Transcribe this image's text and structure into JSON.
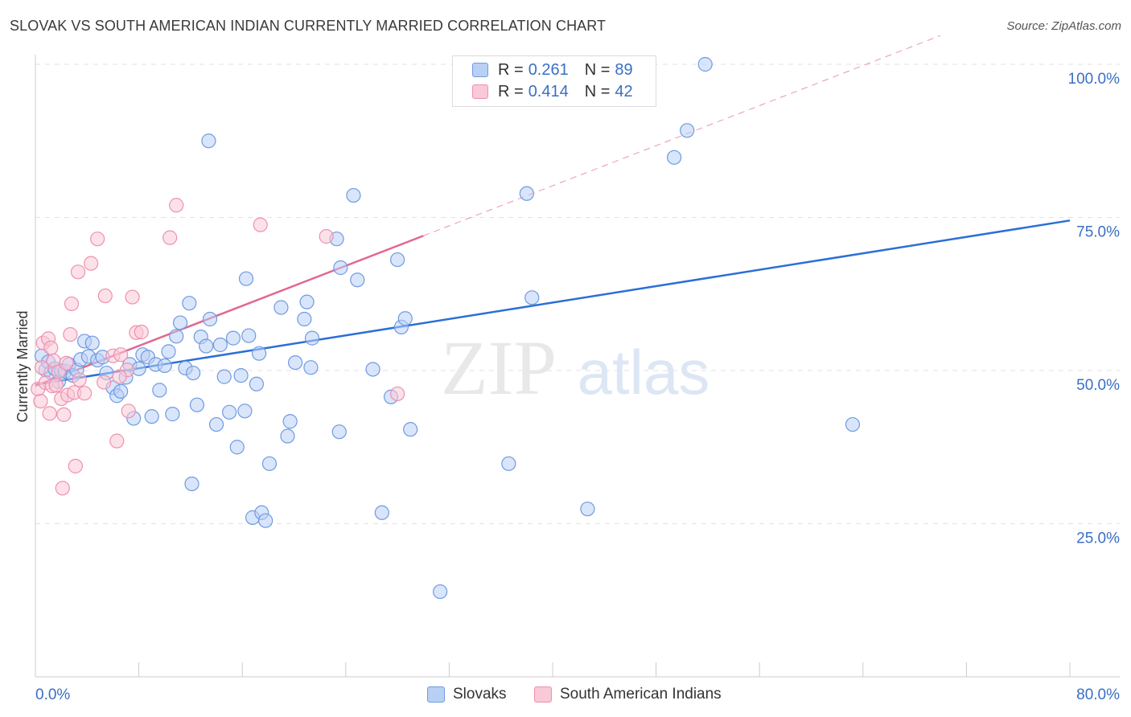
{
  "header": {
    "title": "SLOVAK VS SOUTH AMERICAN INDIAN CURRENTLY MARRIED CORRELATION CHART",
    "source": "Source: ZipAtlas.com"
  },
  "watermark": {
    "zip": "ZIP",
    "atlas": "atlas"
  },
  "legend": {
    "rows": [
      {
        "r_label": "R =",
        "r_value": "0.261",
        "n_label": "N =",
        "n_value": "89",
        "color": "#6f9be0",
        "fill": "#b9d0f5"
      },
      {
        "r_label": "R =",
        "r_value": "0.414",
        "n_label": "N =",
        "n_value": "42",
        "color": "#ee91ad",
        "fill": "#f9c9d7"
      }
    ]
  },
  "bottom_legend": {
    "items": [
      {
        "label": "Slovaks",
        "color": "#6f9be0",
        "fill": "#b9d0f5"
      },
      {
        "label": "South American Indians",
        "color": "#ee91ad",
        "fill": "#f9c9d7"
      }
    ]
  },
  "chart_data": {
    "type": "scatter",
    "ylabel": "Currently Married",
    "x_tick_labels": {
      "min": "0.0%",
      "max": "80.0%"
    },
    "y_tick_labels": [
      "100.0%",
      "75.0%",
      "50.0%",
      "25.0%"
    ],
    "y_ticks": [
      100,
      75,
      50,
      25
    ],
    "xlim": [
      0,
      80
    ],
    "ylim": [
      0,
      102
    ],
    "grid": true,
    "series": [
      {
        "name": "Slovaks",
        "color": "#6f9be0",
        "fill": "#b9d0f5",
        "trend": {
          "x": [
            0,
            80
          ],
          "y": [
            47.7,
            74.5
          ],
          "style": "solid",
          "color": "#2b6fd6"
        },
        "points": [
          [
            0.5,
            52.4
          ],
          [
            0.8,
            50.1
          ],
          [
            1.0,
            51.4
          ],
          [
            1.2,
            49.7
          ],
          [
            1.5,
            50.3
          ],
          [
            1.8,
            48.2
          ],
          [
            2.0,
            50.0
          ],
          [
            2.3,
            49.9
          ],
          [
            2.6,
            51.0
          ],
          [
            2.9,
            49.2
          ],
          [
            3.2,
            50.1
          ],
          [
            3.5,
            51.8
          ],
          [
            3.8,
            54.8
          ],
          [
            4.1,
            52.3
          ],
          [
            4.4,
            54.5
          ],
          [
            4.8,
            51.7
          ],
          [
            5.2,
            52.2
          ],
          [
            5.5,
            49.6
          ],
          [
            6.0,
            47.2
          ],
          [
            6.3,
            45.9
          ],
          [
            6.6,
            46.6
          ],
          [
            7.0,
            48.9
          ],
          [
            7.3,
            51.0
          ],
          [
            7.6,
            42.2
          ],
          [
            8.0,
            50.3
          ],
          [
            8.3,
            52.6
          ],
          [
            8.7,
            52.2
          ],
          [
            9.0,
            42.5
          ],
          [
            9.3,
            51.0
          ],
          [
            9.6,
            46.8
          ],
          [
            10.0,
            50.8
          ],
          [
            10.3,
            53.1
          ],
          [
            10.6,
            42.9
          ],
          [
            10.9,
            55.6
          ],
          [
            11.2,
            57.8
          ],
          [
            11.6,
            50.4
          ],
          [
            11.9,
            61.0
          ],
          [
            12.2,
            49.6
          ],
          [
            12.5,
            44.4
          ],
          [
            12.8,
            55.5
          ],
          [
            12.1,
            31.5
          ],
          [
            13.2,
            54.0
          ],
          [
            13.5,
            58.4
          ],
          [
            14.0,
            41.2
          ],
          [
            14.3,
            54.2
          ],
          [
            13.4,
            87.5
          ],
          [
            14.6,
            49.0
          ],
          [
            15.0,
            43.2
          ],
          [
            15.3,
            55.3
          ],
          [
            15.6,
            37.5
          ],
          [
            15.9,
            49.2
          ],
          [
            16.2,
            43.4
          ],
          [
            16.5,
            55.7
          ],
          [
            16.3,
            65.0
          ],
          [
            16.8,
            26.0
          ],
          [
            17.1,
            47.8
          ],
          [
            17.3,
            52.8
          ],
          [
            17.5,
            26.8
          ],
          [
            17.8,
            25.5
          ],
          [
            18.1,
            34.8
          ],
          [
            19.0,
            60.3
          ],
          [
            19.5,
            39.3
          ],
          [
            19.7,
            41.7
          ],
          [
            20.1,
            51.3
          ],
          [
            20.8,
            58.4
          ],
          [
            21.0,
            61.2
          ],
          [
            21.3,
            50.5
          ],
          [
            21.4,
            55.3
          ],
          [
            23.3,
            71.5
          ],
          [
            23.5,
            40.0
          ],
          [
            23.6,
            66.8
          ],
          [
            24.9,
            64.8
          ],
          [
            24.6,
            78.6
          ],
          [
            26.1,
            50.2
          ],
          [
            26.8,
            26.8
          ],
          [
            27.5,
            45.7
          ],
          [
            28.3,
            57.1
          ],
          [
            28.0,
            68.1
          ],
          [
            28.6,
            58.5
          ],
          [
            29.0,
            40.4
          ],
          [
            31.3,
            13.9
          ],
          [
            36.6,
            34.8
          ],
          [
            38.0,
            78.9
          ],
          [
            38.4,
            61.9
          ],
          [
            42.7,
            27.4
          ],
          [
            49.4,
            84.8
          ],
          [
            50.4,
            89.2
          ],
          [
            51.8,
            100.0
          ],
          [
            63.2,
            41.2
          ]
        ]
      },
      {
        "name": "South American Indians",
        "color": "#ee91ad",
        "fill": "#f9c9d7",
        "trend": {
          "x": [
            0,
            30
          ],
          "y": [
            47.5,
            72.0
          ],
          "style": "solid",
          "color": "#e2678f",
          "extension": {
            "x": [
              30,
              70
            ],
            "y": [
              72.0,
              104.7
            ],
            "style": "dashed"
          }
        },
        "points": [
          [
            0.2,
            47.0
          ],
          [
            0.4,
            45.0
          ],
          [
            0.5,
            50.5
          ],
          [
            0.6,
            54.5
          ],
          [
            0.8,
            48.0
          ],
          [
            1.0,
            55.2
          ],
          [
            1.2,
            53.7
          ],
          [
            1.3,
            47.5
          ],
          [
            1.4,
            51.6
          ],
          [
            1.6,
            47.6
          ],
          [
            1.8,
            49.8
          ],
          [
            2.0,
            45.4
          ],
          [
            2.1,
            30.8
          ],
          [
            2.2,
            42.8
          ],
          [
            2.4,
            51.2
          ],
          [
            2.5,
            46.0
          ],
          [
            2.7,
            55.9
          ],
          [
            2.8,
            60.9
          ],
          [
            3.0,
            46.4
          ],
          [
            3.1,
            34.4
          ],
          [
            3.3,
            66.1
          ],
          [
            3.4,
            48.5
          ],
          [
            3.8,
            46.3
          ],
          [
            4.3,
            67.5
          ],
          [
            4.8,
            71.5
          ],
          [
            5.3,
            48.1
          ],
          [
            5.4,
            62.2
          ],
          [
            6.0,
            52.4
          ],
          [
            6.3,
            38.5
          ],
          [
            6.6,
            52.6
          ],
          [
            7.1,
            50.1
          ],
          [
            7.2,
            43.4
          ],
          [
            7.5,
            62.0
          ],
          [
            7.8,
            56.2
          ],
          [
            8.2,
            56.3
          ],
          [
            10.4,
            71.7
          ],
          [
            10.9,
            77.0
          ],
          [
            17.4,
            73.8
          ],
          [
            22.5,
            71.9
          ],
          [
            28.0,
            46.2
          ],
          [
            6.5,
            49.0
          ],
          [
            1.1,
            43.0
          ]
        ]
      }
    ]
  }
}
